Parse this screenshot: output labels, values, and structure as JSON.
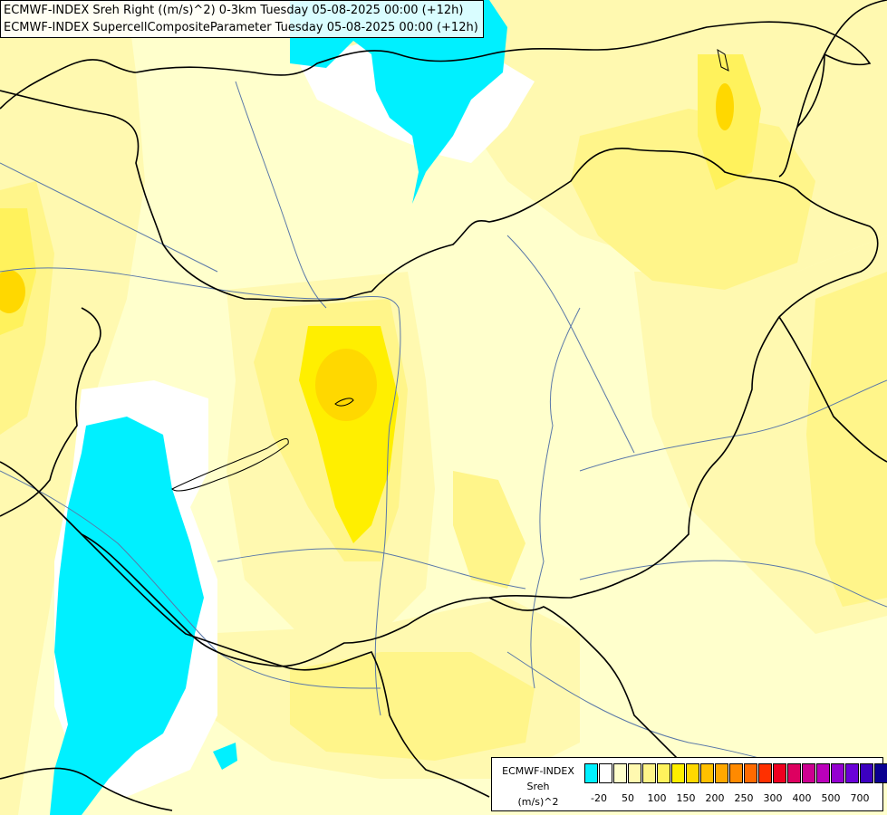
{
  "title": {
    "line1": "ECMWF-INDEX Sreh Right ((m/s)^2) 0-3km Tuesday 05-08-2025 00:00 (+12h)",
    "line2": "ECMWF-INDEX SupercellCompositeParameter Tuesday 05-08-2025 00:00 (+12h)"
  },
  "legend": {
    "line1": "ECMWF-INDEX",
    "line2": "Sreh",
    "line3": "(m/s)^2",
    "colors": [
      "#00f0ff",
      "#ffffff",
      "#ffffcc",
      "#fff9b0",
      "#fff58a",
      "#fff25c",
      "#ffef00",
      "#ffd800",
      "#ffc000",
      "#ffa800",
      "#ff8a00",
      "#ff6a00",
      "#ff3000",
      "#ee0020",
      "#dd0060",
      "#cc0090",
      "#bb00bb",
      "#9400d0",
      "#6a00d8",
      "#3c00c0",
      "#0a0090"
    ],
    "tick_labels": [
      "-20",
      "50",
      "100",
      "150",
      "200",
      "250",
      "300",
      "400",
      "500",
      "700"
    ]
  },
  "fill_colors": {
    "cyan": "#00f0ff",
    "white": "#ffffff",
    "pale": "#ffffcc",
    "light": "#fff9b0",
    "mid": "#fff58a",
    "yellow": "#fff25c",
    "strong": "#ffef00",
    "gold": "#ffd800"
  }
}
